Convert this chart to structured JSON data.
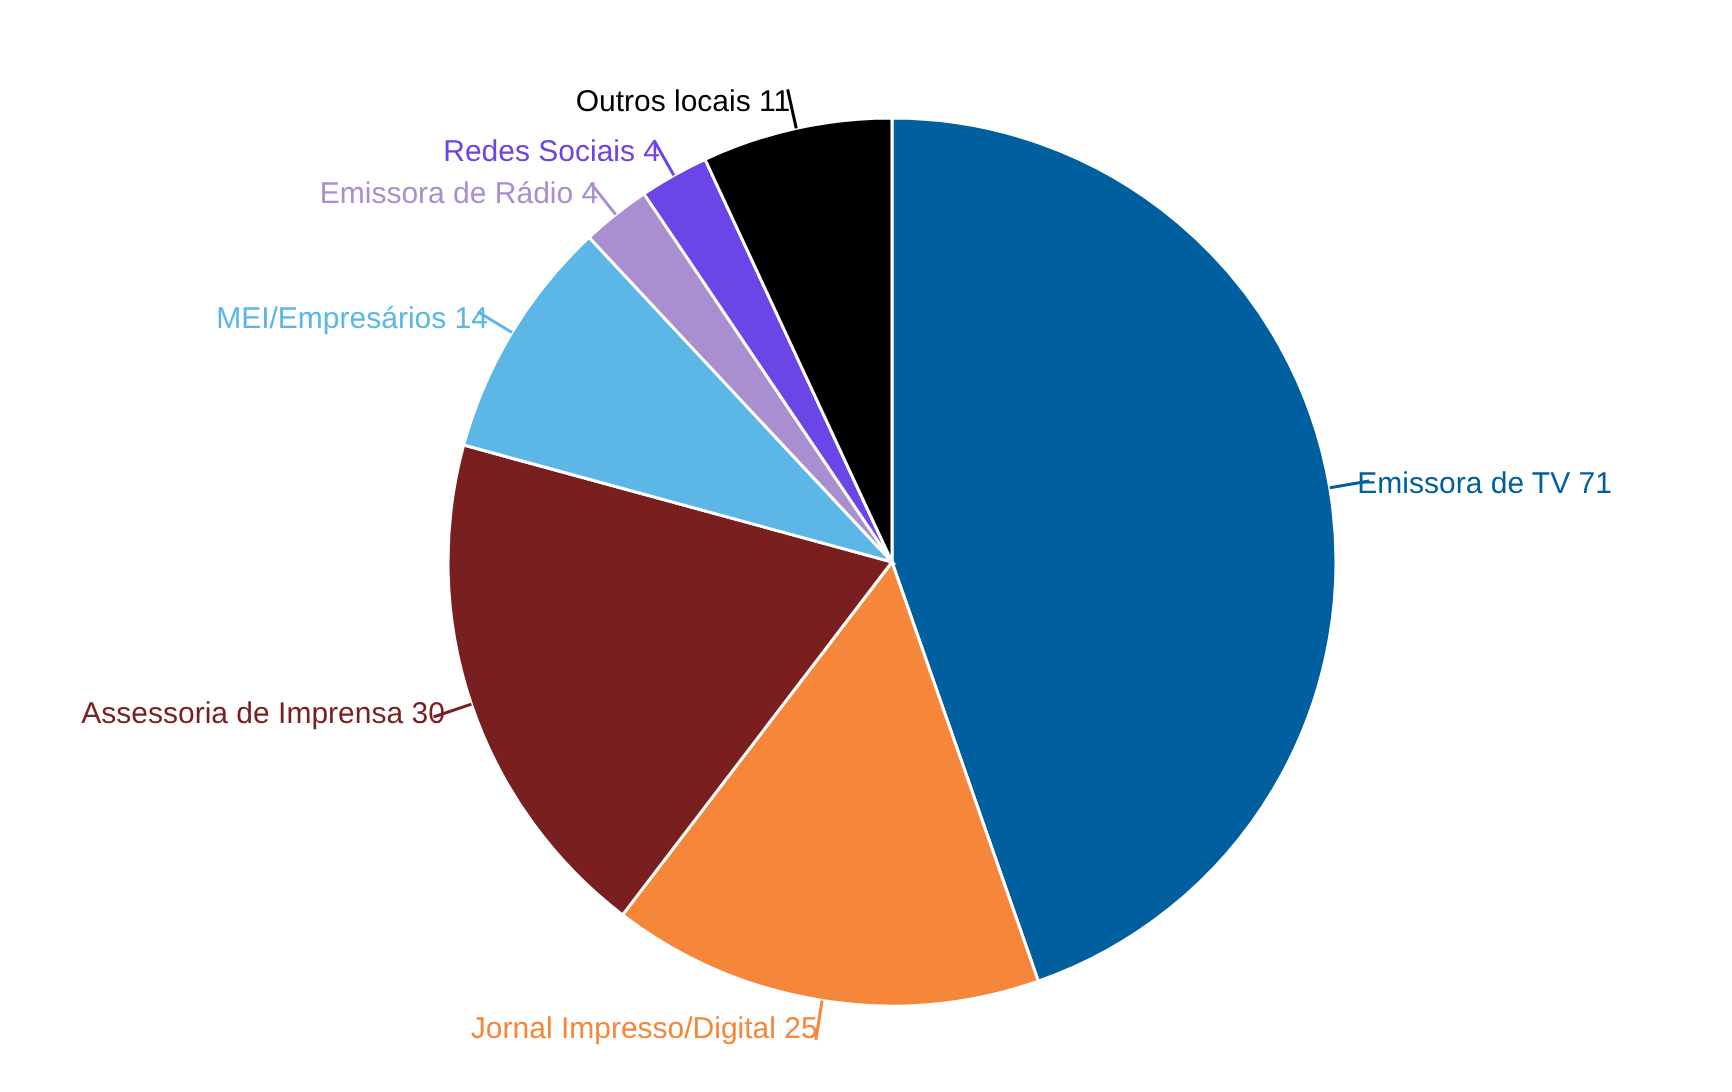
{
  "chart_data": {
    "type": "pie",
    "categories": [
      "Emissora de TV",
      "Jornal Impresso/Digital",
      "Assessoria de Imprensa",
      "MEI/Empresários",
      "Emissora de Rádio",
      "Redes Sociais",
      "Outros locais"
    ],
    "values": [
      71,
      25,
      30,
      14,
      4,
      4,
      11
    ],
    "colors": [
      "#005f9e",
      "#f5863a",
      "#7a1f1f",
      "#5cb6e6",
      "#a98fcf",
      "#6b45e6",
      "#000000"
    ],
    "data_labels": true,
    "legend": false
  }
}
